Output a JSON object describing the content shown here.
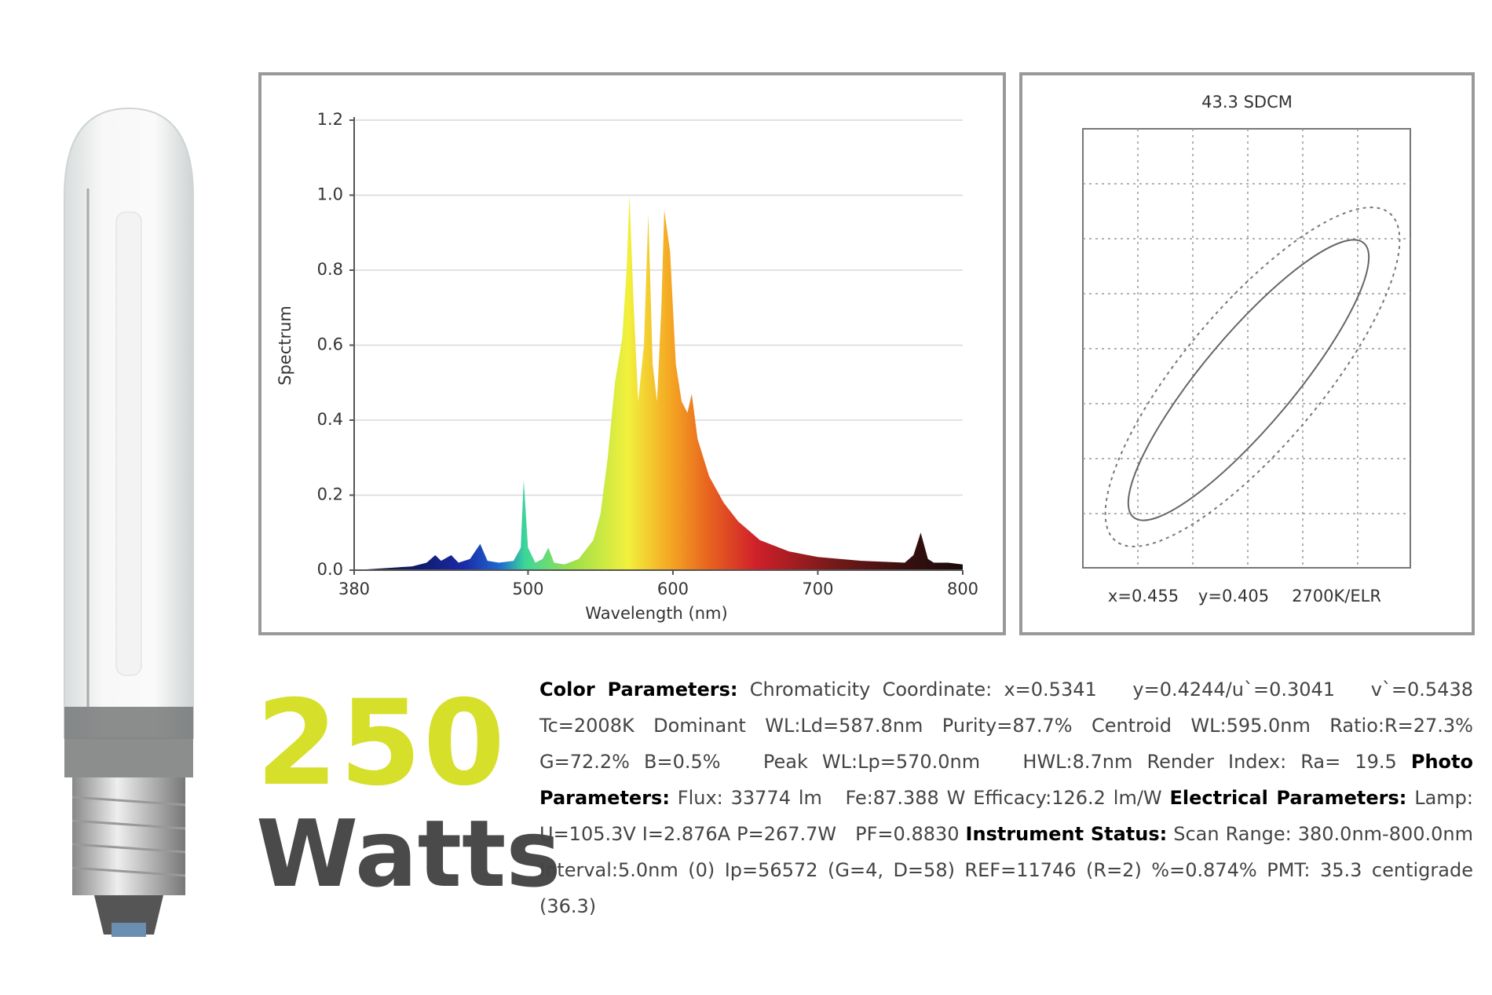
{
  "chart_data": [
    {
      "type": "area",
      "ylabel": "Spectrum",
      "xlabel": "Wavelength (nm)",
      "x": [
        380,
        400,
        420,
        430,
        436,
        440,
        447,
        452,
        460,
        467,
        472,
        480,
        490,
        495,
        497,
        500,
        505,
        510,
        514,
        518,
        525,
        535,
        545,
        550,
        555,
        560,
        565,
        568,
        570,
        573,
        576,
        580,
        583,
        586,
        589,
        592,
        594,
        598,
        602,
        606,
        610,
        613,
        617,
        625,
        635,
        645,
        660,
        680,
        700,
        730,
        760,
        766,
        771,
        776,
        780,
        790,
        800
      ],
      "values": [
        0,
        0.005,
        0.01,
        0.02,
        0.04,
        0.025,
        0.04,
        0.02,
        0.03,
        0.07,
        0.025,
        0.02,
        0.025,
        0.06,
        0.24,
        0.06,
        0.02,
        0.03,
        0.06,
        0.02,
        0.015,
        0.03,
        0.08,
        0.15,
        0.3,
        0.5,
        0.62,
        0.8,
        1.0,
        0.7,
        0.45,
        0.6,
        0.95,
        0.55,
        0.45,
        0.7,
        0.96,
        0.85,
        0.55,
        0.45,
        0.42,
        0.47,
        0.35,
        0.25,
        0.18,
        0.13,
        0.08,
        0.05,
        0.035,
        0.025,
        0.02,
        0.04,
        0.1,
        0.03,
        0.02,
        0.02,
        0.015
      ],
      "xlim": [
        380,
        800
      ],
      "xticks": [
        380,
        500,
        600,
        700,
        800
      ],
      "ylim": [
        0,
        1.2
      ],
      "yticks": [
        {
          "value": 0,
          "label": "0.0"
        },
        0.2,
        0.4,
        0.6,
        0.8,
        {
          "value": 1,
          "label": "1.0"
        },
        1.2
      ],
      "grid": true
    }
  ],
  "chromaticity": {
    "title": "43.3 SDCM",
    "x_label": "x=0.455",
    "y_label": "y=0.405",
    "class_label": "2700K/ELR"
  },
  "product": {
    "wattage": "250",
    "unit": "Watts"
  },
  "parameters": [
    {
      "label": "Color Parameters:",
      "text": "Chromaticity Coordinate: x=0.5341   y=0.4244/u`=0.3041   v`=0.5438 Tc=2008K Dominant WL:Ld=587.8nm Purity=87.7% Centroid WL:595.0nm Ratio:R=27.3% G=72.2% B=0.5%   Peak WL:Lp=570.0nm   HWL:8.7nm Render Index: Ra= 19.5"
    },
    {
      "label": "Photo Parameters:",
      "text": "Flux: 33774 lm   Fe:87.388 W Efficacy:126.2 lm/W"
    },
    {
      "label": "Electrical Parameters:",
      "text": "Lamp: U=105.3V I=2.876A P=267.7W   PF=0.8830"
    },
    {
      "label": "Instrument Status:",
      "text": "Scan Range: 380.0nm-800.0nm Interval:5.0nm (0) Ip=56572 (G=4, D=58) REF=11746 (R=2) %=0.874% PMT: 35.3 centigrade (36.3)"
    }
  ]
}
